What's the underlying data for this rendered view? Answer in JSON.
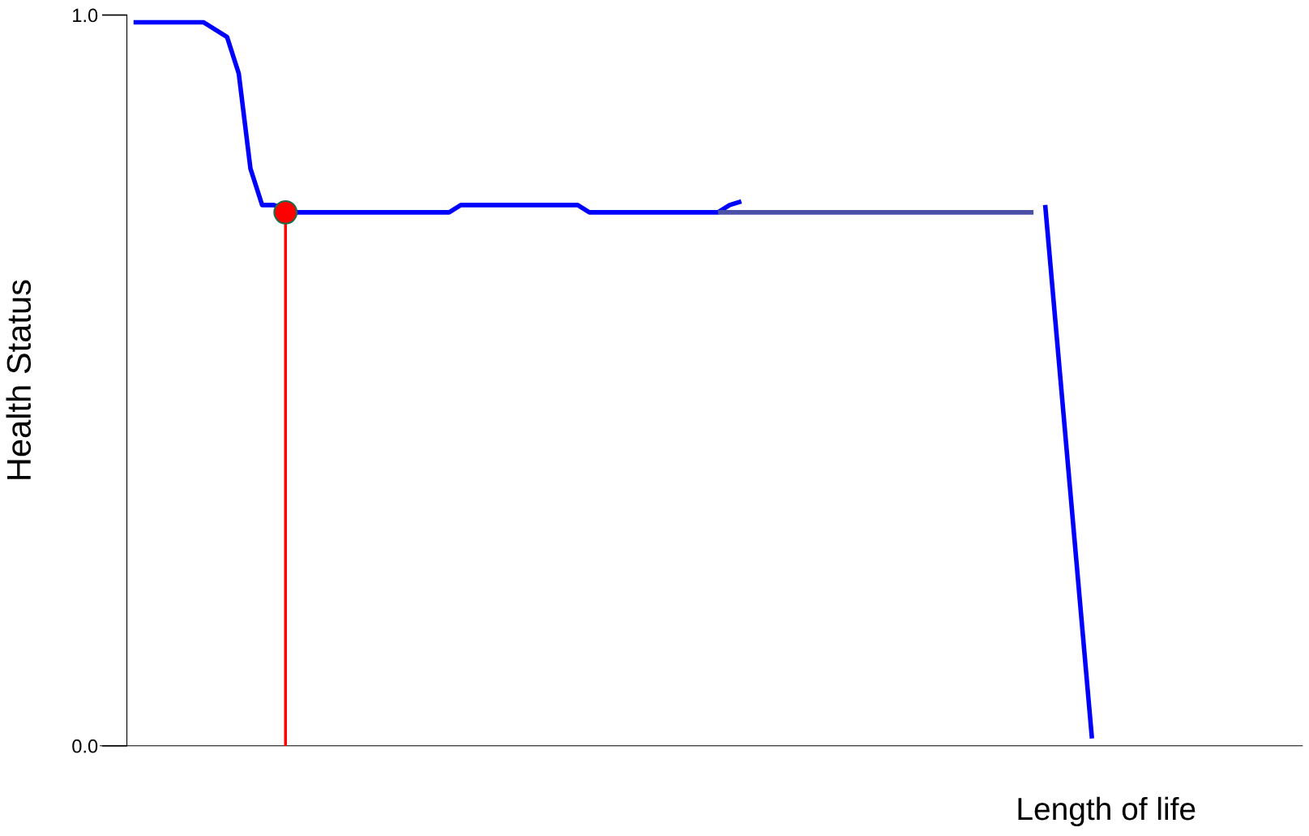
{
  "chart_data": {
    "type": "line",
    "ylabel": "Health Status",
    "xlabel": "Length of life",
    "tick_labels": "y",
    "ylim": [
      0,
      1
    ],
    "yticks": [
      {
        "value": 0,
        "label": "0.0"
      },
      {
        "value": 1,
        "label": "1.0"
      }
    ],
    "categories": [
      null,
      null,
      null,
      null,
      null,
      null,
      null,
      null,
      null,
      null,
      null,
      null,
      null,
      null,
      null,
      null,
      null,
      null,
      null,
      null,
      null,
      null,
      null,
      null,
      null,
      null,
      null,
      null,
      null,
      null,
      null,
      null,
      null,
      null,
      null,
      null,
      null,
      null,
      null,
      null,
      null,
      null,
      null,
      null,
      null,
      null,
      null,
      null,
      null,
      null,
      null,
      null,
      null,
      null,
      null,
      null,
      null,
      null,
      null,
      null,
      null,
      null,
      null,
      null,
      null,
      null,
      null,
      null,
      null,
      null,
      null,
      null,
      null,
      null,
      null,
      null,
      null,
      null,
      null,
      null,
      null,
      null,
      null
    ],
    "series": [
      {
        "color": "#0000ff",
        "values": [
          0.99,
          0.99,
          0.99,
          0.99,
          0.99,
          0.99,
          0.99,
          0.98,
          0.97,
          0.92,
          0.79,
          0.74,
          0.74,
          null,
          0.73,
          0.73,
          0.73,
          0.73,
          0.73,
          0.73,
          0.73,
          0.73,
          0.73,
          0.73,
          0.73,
          0.73,
          0.73,
          0.73,
          0.74,
          0.74,
          0.74,
          0.74,
          0.74,
          0.74,
          0.74,
          0.74,
          0.74,
          0.74,
          0.74,
          0.73,
          0.73,
          0.73,
          0.73,
          0.73,
          0.73,
          0.73,
          0.73,
          0.73,
          0.73,
          0.73,
          0.73,
          0.74,
          0.745,
          null,
          null,
          null,
          null,
          null,
          null,
          null,
          null,
          null,
          null,
          null,
          null,
          null,
          null,
          null,
          null,
          null,
          null,
          null,
          null,
          null,
          null,
          null,
          null,
          null,
          null,
          null,
          null,
          null,
          null
        ]
      },
      {
        "color": "#4a4fa8",
        "values": [
          null,
          null,
          null,
          null,
          null,
          null,
          null,
          null,
          null,
          null,
          null,
          null,
          null,
          null,
          null,
          null,
          null,
          null,
          null,
          null,
          null,
          null,
          null,
          null,
          null,
          null,
          null,
          null,
          null,
          null,
          null,
          null,
          null,
          null,
          null,
          null,
          null,
          null,
          null,
          null,
          null,
          null,
          null,
          null,
          null,
          null,
          null,
          null,
          null,
          null,
          0.73,
          0.73,
          0.73,
          0.73,
          0.73,
          0.73,
          0.73,
          0.73,
          0.73,
          0.73,
          0.73,
          0.73,
          0.73,
          0.73,
          0.73,
          0.73,
          0.73,
          0.73,
          0.73,
          0.73,
          0.73,
          0.73,
          0.73,
          0.73,
          0.73,
          0.73,
          0.73,
          0.73,
          null,
          null,
          null,
          null,
          null
        ]
      },
      {
        "color": "#0000ff",
        "values": [
          null,
          null,
          null,
          null,
          null,
          null,
          null,
          null,
          null,
          null,
          null,
          null,
          null,
          null,
          null,
          null,
          null,
          null,
          null,
          null,
          null,
          null,
          null,
          null,
          null,
          null,
          null,
          null,
          null,
          null,
          null,
          null,
          null,
          null,
          null,
          null,
          null,
          null,
          null,
          null,
          null,
          null,
          null,
          null,
          null,
          null,
          null,
          null,
          null,
          null,
          null,
          null,
          null,
          null,
          null,
          null,
          null,
          null,
          null,
          null,
          null,
          null,
          null,
          null,
          null,
          null,
          null,
          null,
          null,
          null,
          null,
          null,
          null,
          null,
          null,
          null,
          null,
          null,
          0.74,
          null,
          null,
          null,
          0.01
        ]
      },
      {
        "type": "lollipop",
        "color": "#ff0000",
        "marker": "circle",
        "values": [
          null,
          null,
          null,
          null,
          null,
          null,
          null,
          null,
          null,
          null,
          null,
          null,
          null,
          0.73,
          null,
          null,
          null,
          null,
          null,
          null,
          null,
          null,
          null,
          null,
          null,
          null,
          null,
          null,
          null,
          null,
          null,
          null,
          null,
          null,
          null,
          null,
          null,
          null,
          null,
          null,
          null,
          null,
          null,
          null,
          null,
          null,
          null,
          null,
          null,
          null,
          null,
          null,
          null,
          null,
          null,
          null,
          null,
          null,
          null,
          null,
          null,
          null,
          null,
          null,
          null,
          null,
          null,
          null,
          null,
          null,
          null,
          null,
          null,
          null,
          null,
          null,
          null,
          null,
          null,
          null,
          null,
          null,
          null
        ]
      }
    ]
  }
}
